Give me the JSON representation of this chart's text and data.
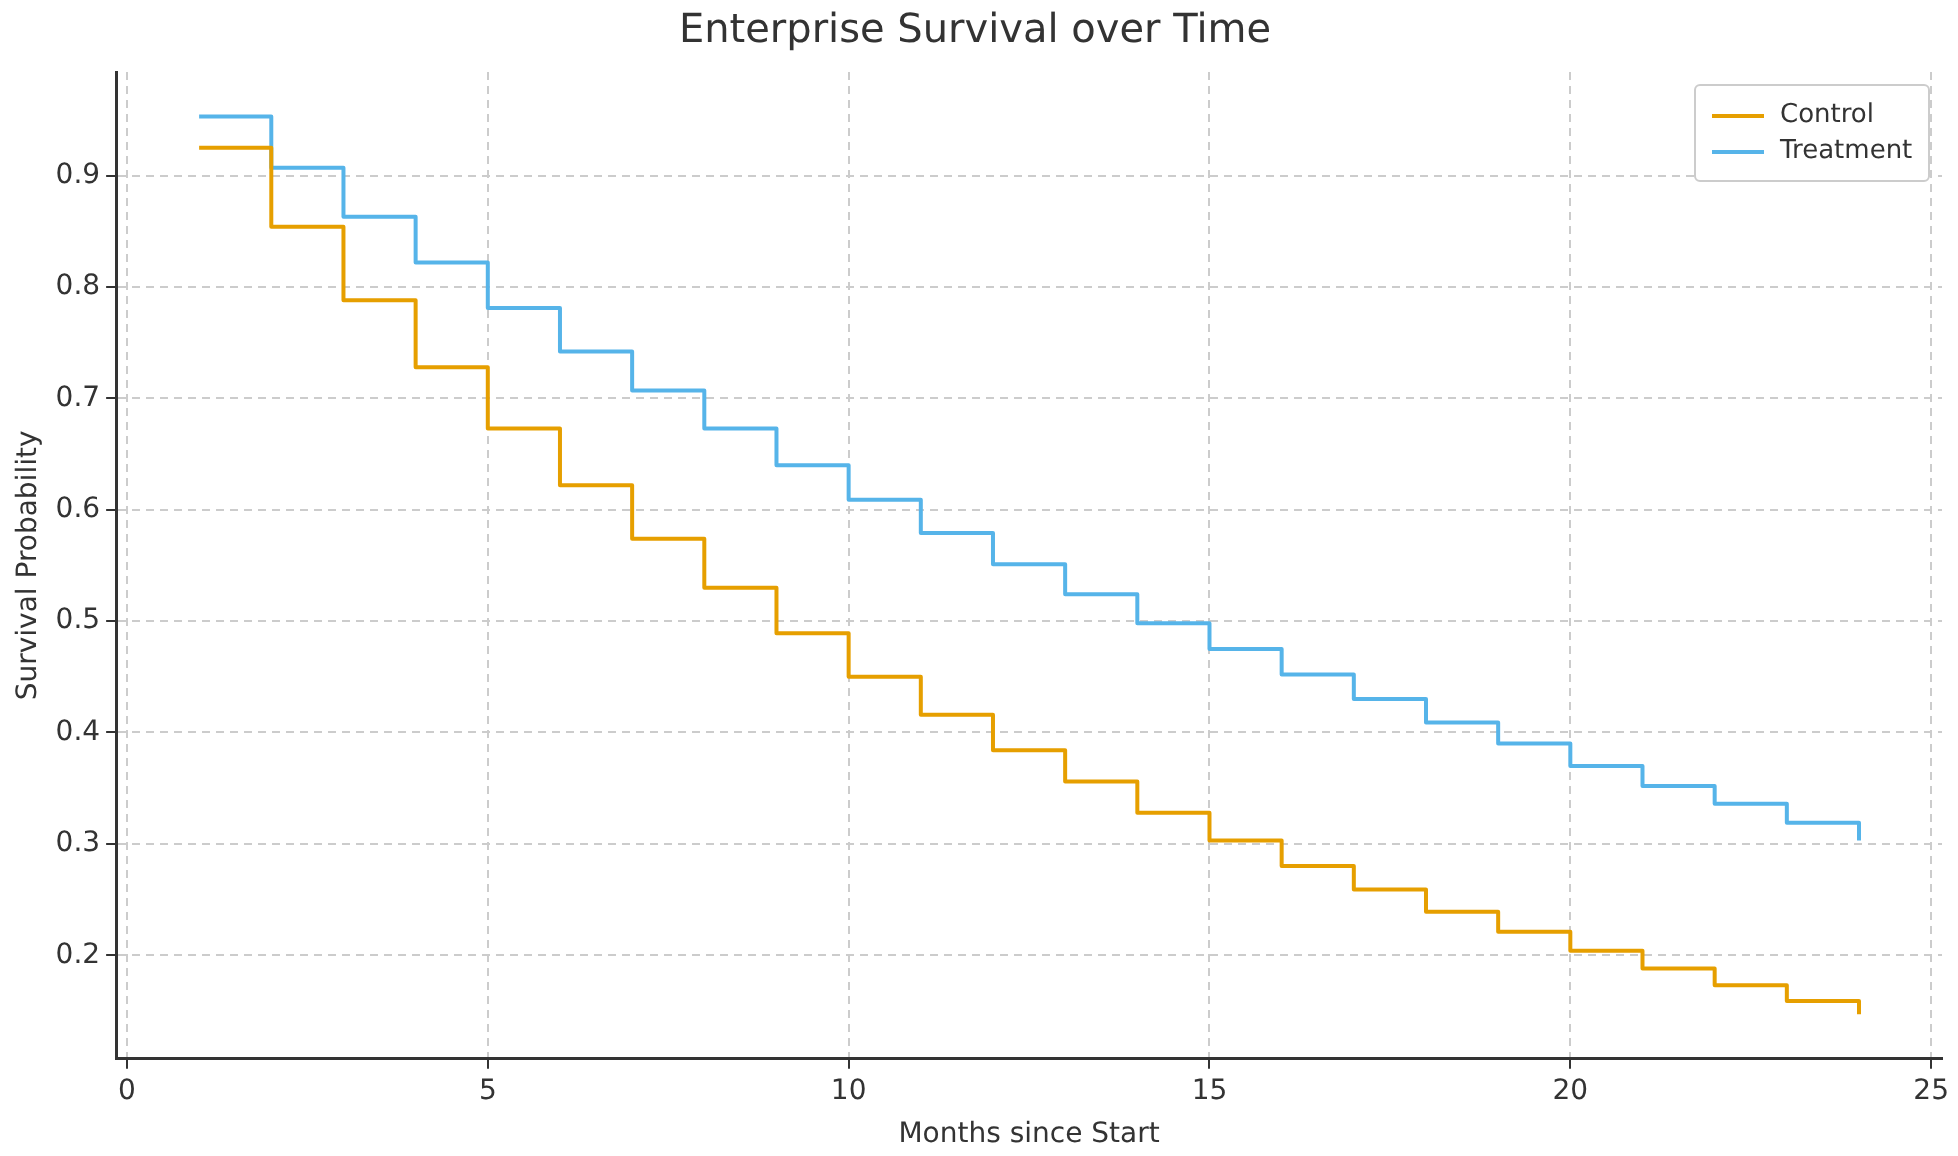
{
  "chart_data": {
    "type": "step",
    "title": "Enterprise Survival over Time",
    "xlabel": "Months since Start",
    "ylabel": "Survival Probability",
    "x": [
      1,
      2,
      3,
      4,
      5,
      6,
      7,
      8,
      9,
      10,
      11,
      12,
      13,
      14,
      15,
      16,
      17,
      18,
      19,
      20,
      21,
      22,
      23,
      24
    ],
    "series": [
      {
        "name": "Control",
        "color": "#e69f00",
        "values": [
          0.925,
          0.854,
          0.788,
          0.728,
          0.673,
          0.622,
          0.574,
          0.53,
          0.489,
          0.45,
          0.416,
          0.384,
          0.356,
          0.328,
          0.303,
          0.28,
          0.259,
          0.239,
          0.221,
          0.204,
          0.188,
          0.173,
          0.159,
          0.147
        ]
      },
      {
        "name": "Treatment",
        "color": "#56b4e9",
        "values": [
          0.953,
          0.907,
          0.863,
          0.822,
          0.781,
          0.742,
          0.707,
          0.673,
          0.64,
          0.609,
          0.579,
          0.551,
          0.524,
          0.498,
          0.475,
          0.452,
          0.43,
          0.409,
          0.39,
          0.37,
          0.352,
          0.336,
          0.319,
          0.303
        ]
      }
    ],
    "xlim": [
      -0.15,
      25.15
    ],
    "ylim": [
      0.107,
      0.993
    ],
    "xticks": [
      0,
      5,
      10,
      15,
      20,
      25
    ],
    "yticks": [
      0.2,
      0.3,
      0.4,
      0.5,
      0.6,
      0.7,
      0.8,
      0.9
    ],
    "grid": true,
    "legend": "top right"
  }
}
